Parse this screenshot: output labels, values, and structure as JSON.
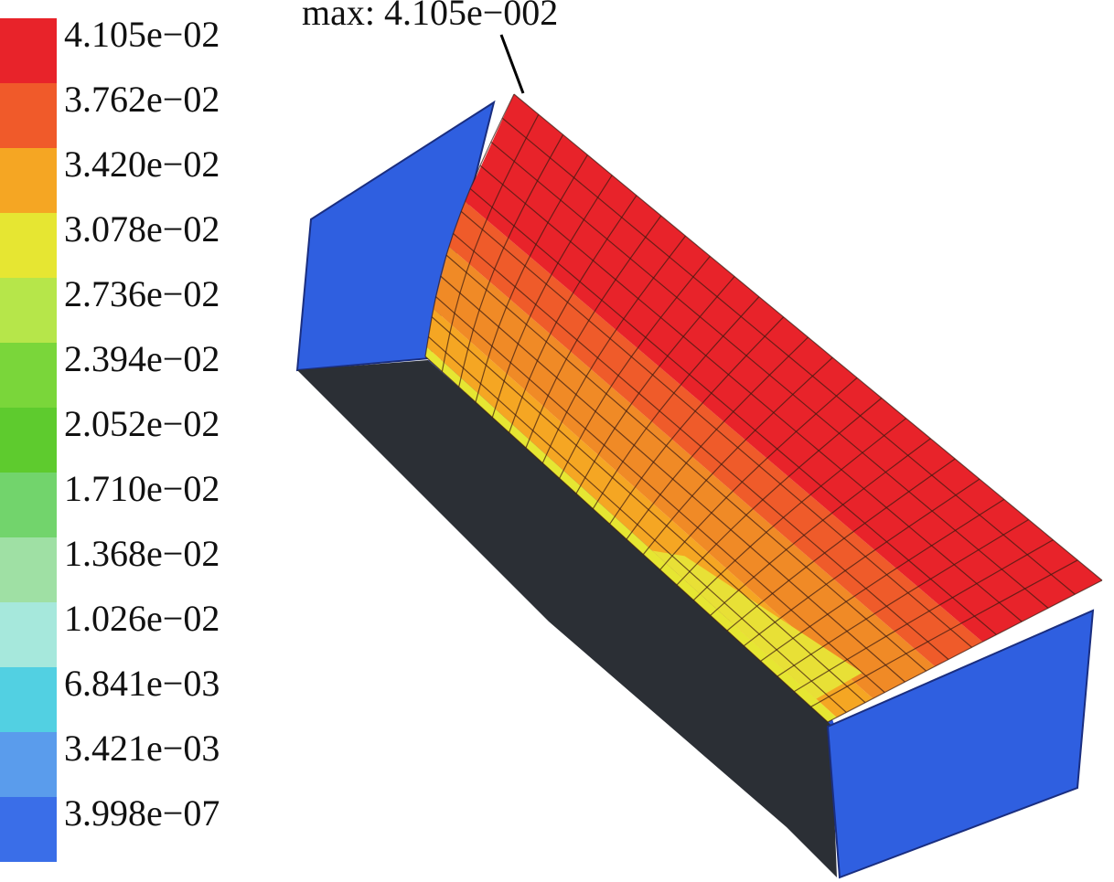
{
  "legend": {
    "labels": [
      "4.105e−02",
      "3.762e−02",
      "3.420e−02",
      "3.078e−02",
      "2.736e−02",
      "2.394e−02",
      "2.052e−02",
      "1.710e−02",
      "1.368e−02",
      "1.026e−02",
      "6.841e−03",
      "3.421e−03",
      "3.998e−07"
    ]
  },
  "annotation": "max: 4.105e−002"
}
